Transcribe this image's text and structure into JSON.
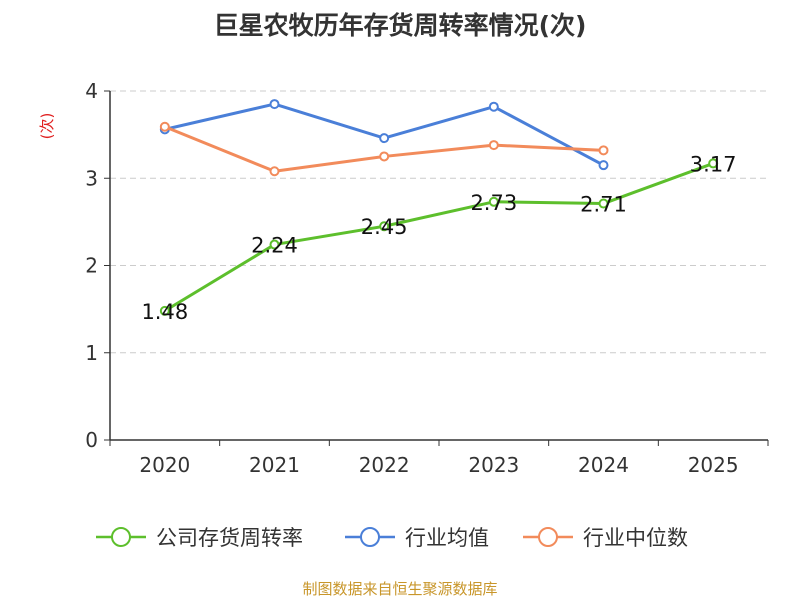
{
  "chart_data": {
    "type": "line",
    "title": "巨星农牧历年存货周转率情况(次)",
    "ylabel": "(次)",
    "xlabel": "",
    "categories": [
      "2020",
      "2021",
      "2022",
      "2023",
      "2024",
      "2025"
    ],
    "ylim": [
      0,
      4
    ],
    "yticks": [
      "0",
      "1",
      "2",
      "3",
      "4"
    ],
    "grid": true,
    "legend_position": "bottom",
    "series": [
      {
        "name": "公司存货周转率",
        "color": "#5dbf2c",
        "values": [
          1.48,
          2.24,
          2.45,
          2.73,
          2.71,
          3.17
        ],
        "labels": [
          "1.48",
          "2.24",
          "2.45",
          "2.73",
          "2.71",
          "3.17"
        ]
      },
      {
        "name": "行业均值",
        "color": "#4a7fd8",
        "values": [
          3.56,
          3.85,
          3.46,
          3.82,
          3.15,
          null
        ]
      },
      {
        "name": "行业中位数",
        "color": "#f28b5b",
        "values": [
          3.59,
          3.08,
          3.25,
          3.38,
          3.32,
          null
        ]
      }
    ]
  },
  "footer": {
    "source": "制图数据来自恒生聚源数据库"
  },
  "colors": {
    "ylabel": "#e02020",
    "axis": "#333333",
    "grid": "#cccccc",
    "title": "#333333",
    "source": "#c8962a"
  }
}
